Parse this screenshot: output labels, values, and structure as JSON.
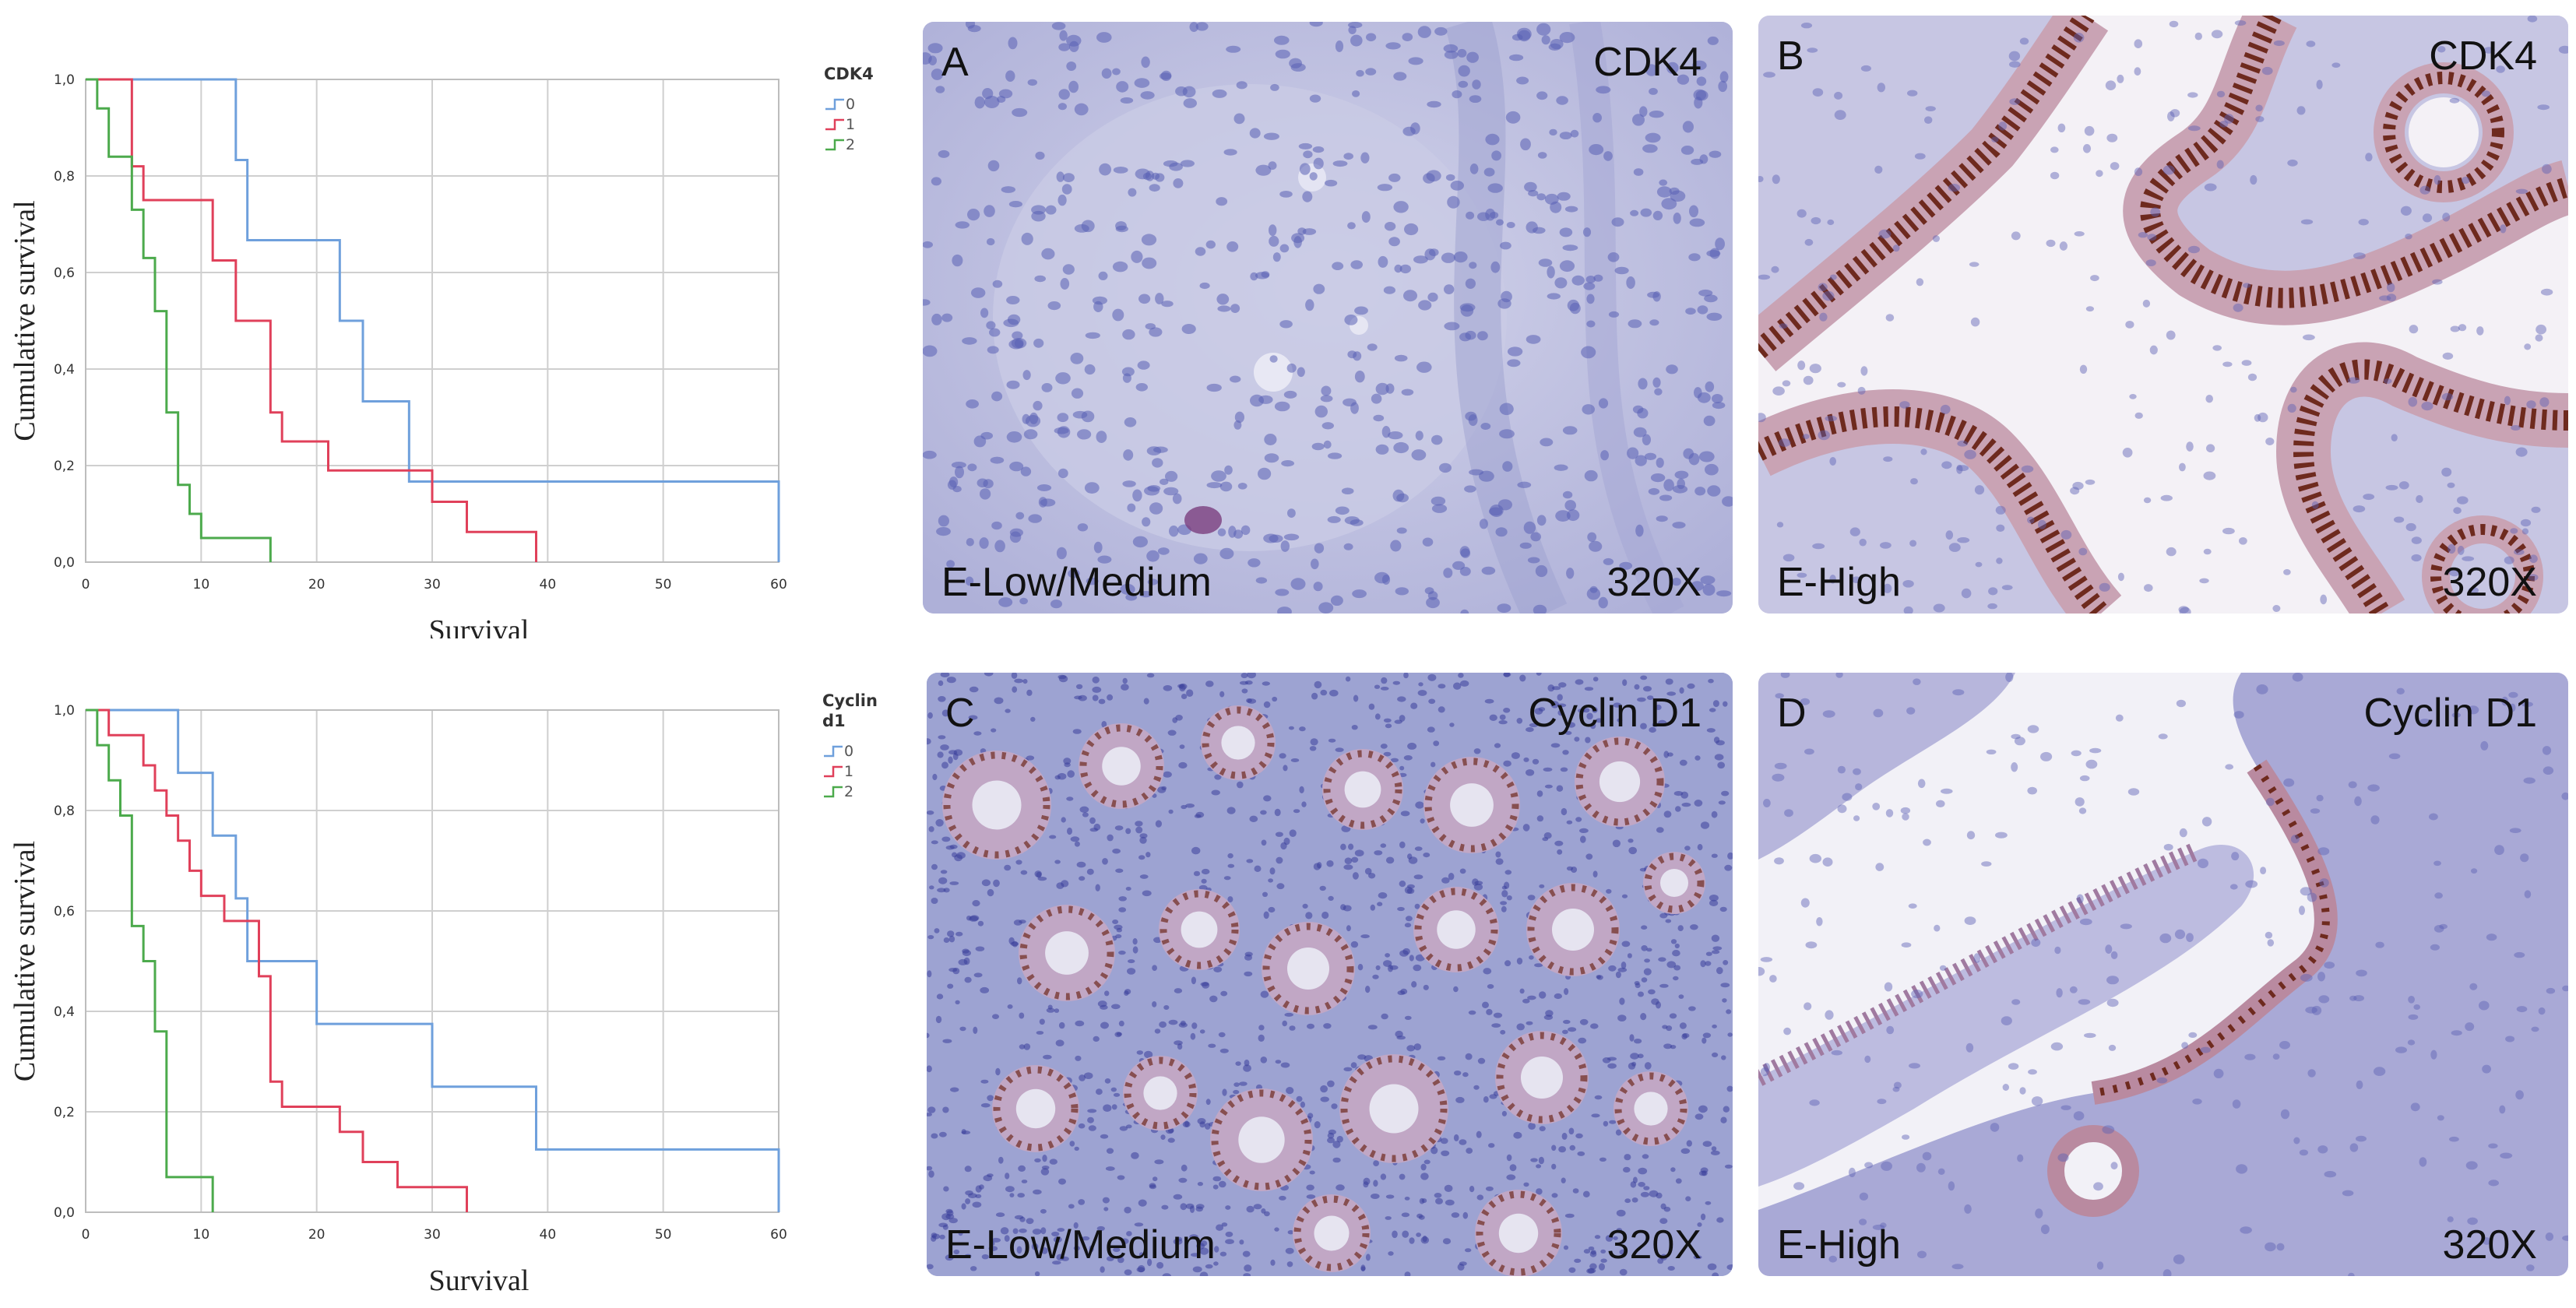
{
  "chart_data": [
    {
      "type": "line",
      "step": true,
      "xlabel": "Survival",
      "ylabel": "Cumulative survival",
      "xlim": [
        0,
        60
      ],
      "ylim": [
        0,
        1
      ],
      "xticks": [
        "0",
        "10",
        "20",
        "30",
        "40",
        "50",
        "60"
      ],
      "yticks": [
        "0,0",
        "0,2",
        "0,4",
        "0,6",
        "0,8",
        "1,0"
      ],
      "grid": true,
      "legend": {
        "title": "CDK4",
        "position": "top-right"
      },
      "series": [
        {
          "name": "0",
          "color": "#6fa0dc",
          "x": [
            0,
            13,
            14,
            22,
            24,
            28,
            60
          ],
          "y": [
            1,
            0.833,
            0.667,
            0.5,
            0.333,
            0.167,
            0
          ]
        },
        {
          "name": "1",
          "color": "#e0405a",
          "x": [
            0,
            4,
            5,
            11,
            13,
            16,
            17,
            18,
            21,
            30,
            33,
            39
          ],
          "y": [
            1,
            0.82,
            0.75,
            0.625,
            0.5,
            0.31,
            0.25,
            0.25,
            0.19,
            0.125,
            0.0625,
            0
          ]
        },
        {
          "name": "2",
          "color": "#4caa4c",
          "x": [
            0,
            1,
            2,
            4,
            5,
            6,
            7,
            8,
            9,
            10,
            11,
            16
          ],
          "y": [
            1,
            0.94,
            0.84,
            0.73,
            0.63,
            0.52,
            0.31,
            0.16,
            0.1,
            0.05,
            0.05,
            0
          ]
        }
      ]
    },
    {
      "type": "line",
      "step": true,
      "xlabel": "Survival",
      "ylabel": "Cumulative survival",
      "xlim": [
        0,
        60
      ],
      "ylim": [
        0,
        1
      ],
      "xticks": [
        "0",
        "10",
        "20",
        "30",
        "40",
        "50",
        "60"
      ],
      "yticks": [
        "0,0",
        "0,2",
        "0,4",
        "0,6",
        "0,8",
        "1,0"
      ],
      "grid": true,
      "legend": {
        "title": "Cyclin d1",
        "position": "top-right"
      },
      "series": [
        {
          "name": "0",
          "color": "#6fa0dc",
          "x": [
            0,
            8,
            11,
            13,
            14,
            20,
            30,
            39,
            60
          ],
          "y": [
            1,
            0.875,
            0.75,
            0.625,
            0.5,
            0.375,
            0.25,
            0.125,
            0
          ]
        },
        {
          "name": "1",
          "color": "#e0405a",
          "x": [
            0,
            2,
            5,
            6,
            7,
            8,
            9,
            10,
            12,
            15,
            16,
            17,
            22,
            24,
            27,
            33
          ],
          "y": [
            1,
            0.95,
            0.89,
            0.84,
            0.79,
            0.74,
            0.68,
            0.63,
            0.58,
            0.47,
            0.26,
            0.21,
            0.16,
            0.1,
            0.05,
            0
          ]
        },
        {
          "name": "2",
          "color": "#4caa4c",
          "x": [
            0,
            1,
            2,
            3,
            4,
            5,
            6,
            7,
            9,
            11
          ],
          "y": [
            1,
            0.93,
            0.86,
            0.79,
            0.57,
            0.5,
            0.36,
            0.07,
            0.07,
            0
          ]
        }
      ]
    }
  ],
  "panels": {
    "a": {
      "letter": "A",
      "stain": "CDK4",
      "expression": "E-Low/Medium",
      "magnification": "320X"
    },
    "b": {
      "letter": "B",
      "stain": "CDK4",
      "expression": "E-High",
      "magnification": "320X"
    },
    "c": {
      "letter": "C",
      "stain": "Cyclin D1",
      "expression": "E-Low/Medium",
      "magnification": "320X"
    },
    "d": {
      "letter": "D",
      "stain": "Cyclin D1",
      "expression": "E-High",
      "magnification": "320X"
    }
  },
  "colors": {
    "panel_a": "#c2c3e2",
    "panel_b": "#e7e2ef",
    "panel_c": "#9da3d2",
    "panel_d": "#e2e0ef",
    "nucleus_blue": "#5a60b4",
    "nucleus_brown": "#6e2a1e",
    "epithelium_pink": "#cfa9b8"
  }
}
